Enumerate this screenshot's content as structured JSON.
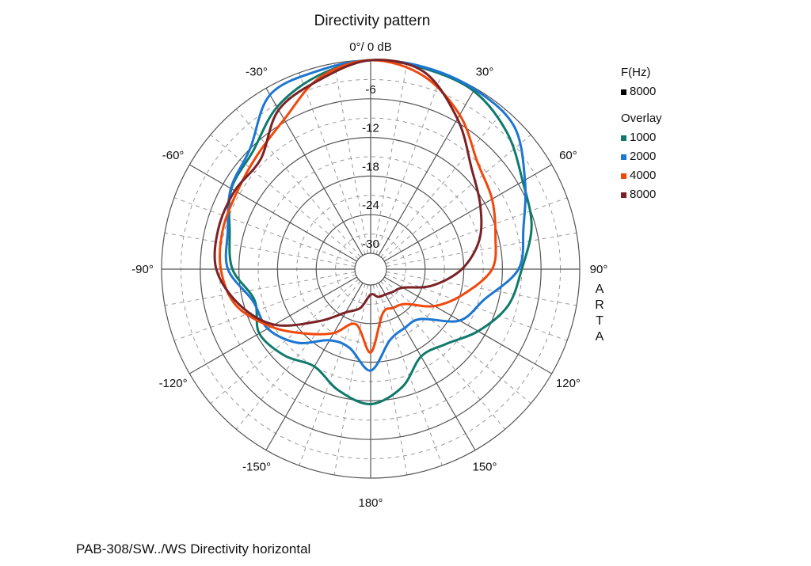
{
  "chart_data": {
    "type": "polar-line",
    "title": "Directivity pattern",
    "caption": "PAB-308/SW../WS  Directivity horizontal",
    "watermark": [
      "A",
      "R",
      "T",
      "A"
    ],
    "radial_range_db": [
      -30,
      0
    ],
    "radial_ticks": [
      {
        "value": -6,
        "label": "-6"
      },
      {
        "value": -12,
        "label": "-12"
      },
      {
        "value": -18,
        "label": "-18"
      },
      {
        "value": -24,
        "label": "-24"
      },
      {
        "value": -30,
        "label": "-30"
      }
    ],
    "angle_ticks": [
      {
        "angle": 0,
        "label": "0°/ 0 dB"
      },
      {
        "angle": 30,
        "label": "30°"
      },
      {
        "angle": 60,
        "label": "60°"
      },
      {
        "angle": 90,
        "label": "90°"
      },
      {
        "angle": 120,
        "label": "120°"
      },
      {
        "angle": 150,
        "label": "150°"
      },
      {
        "angle": 180,
        "label": "180°"
      },
      {
        "angle": 210,
        "label": "-150°"
      },
      {
        "angle": 240,
        "label": "-120°"
      },
      {
        "angle": 270,
        "label": "-90°"
      },
      {
        "angle": 300,
        "label": "-60°"
      },
      {
        "angle": 330,
        "label": "-30°"
      }
    ],
    "grid": true,
    "legend": {
      "placement": "right",
      "header": "F(Hz)",
      "current": {
        "label": "8000",
        "color": "#000000"
      },
      "overlay_header": "Overlay"
    },
    "angles_deg": [
      0,
      15,
      30,
      45,
      60,
      75,
      90,
      105,
      120,
      135,
      150,
      165,
      180,
      195,
      210,
      225,
      240,
      255,
      270,
      285,
      300,
      315,
      330,
      345
    ],
    "series": [
      {
        "name": "1000",
        "color": "#0f7a6c",
        "values": [
          0,
          -0.2,
          -0.5,
          -2.5,
          -5.2,
          -6.6,
          -9,
          -10.4,
          -13.2,
          -16,
          -16.8,
          -13.5,
          -11.5,
          -13,
          -15,
          -13.5,
          -12.5,
          -13.8,
          -11,
          -9.8,
          -7.5,
          -6.6,
          -3.4,
          -1.3
        ]
      },
      {
        "name": "2000",
        "color": "#1c76d2",
        "values": [
          0,
          0,
          -0.2,
          -1,
          -4.8,
          -7.9,
          -9.5,
          -14.2,
          -16.5,
          -21.5,
          -21.9,
          -21,
          -16.7,
          -19.8,
          -19.7,
          -16.3,
          -14,
          -13.5,
          -10.3,
          -9.5,
          -7.4,
          -6,
          -1.2,
          -0.6
        ]
      },
      {
        "name": "4000",
        "color": "#f0480c",
        "values": [
          0,
          -1.3,
          -4.8,
          -9,
          -10.7,
          -12.4,
          -13.6,
          -17.5,
          -21,
          -24.8,
          -25.5,
          -25.3,
          -19.5,
          -23.6,
          -21,
          -18.3,
          -14.6,
          -10.8,
          -9.2,
          -8.7,
          -8.5,
          -7.5,
          -5.6,
          -1.7
        ]
      },
      {
        "name": "8000",
        "color": "#7a2226",
        "values": [
          0,
          -0.7,
          -5.5,
          -10.3,
          -12.8,
          -15,
          -18.3,
          -22.6,
          -26.7,
          -27.5,
          -27.9,
          -28,
          -28.5,
          -26.2,
          -24.7,
          -21,
          -15.2,
          -11.3,
          -8.5,
          -8,
          -8.1,
          -8.3,
          -3.9,
          -2
        ]
      }
    ]
  }
}
